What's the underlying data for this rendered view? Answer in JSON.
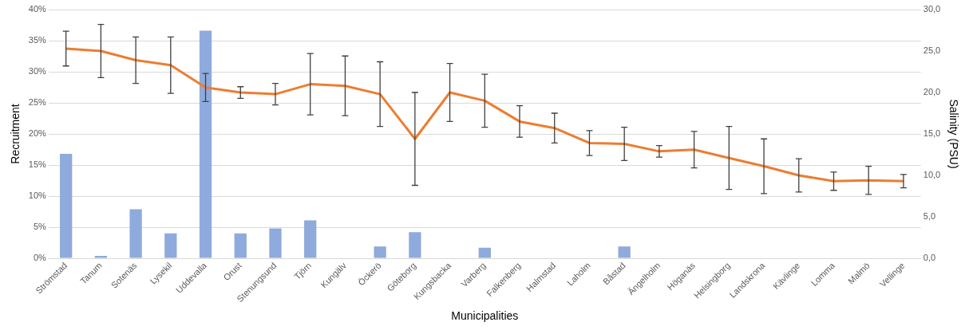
{
  "chart_data": {
    "type": "bar",
    "xlabel": "Municipalities",
    "ylabel": "Recruitment",
    "y2label": "Salinity (PSU)",
    "categories": [
      "Strömstad",
      "Tanum",
      "Sotenäs",
      "Lysekil",
      "Uddevalla",
      "Orust",
      "Stenungsund",
      "Tjörn",
      "Kungälv",
      "Öckerö",
      "Göteborg",
      "Kungsbacka",
      "Varberg",
      "Falkenberg",
      "Halmstad",
      "Laholm",
      "Båstad",
      "Ängelholm",
      "Höganäs",
      "Helsingborg",
      "Landskrona",
      "Kävlinge",
      "Lomma",
      "Malmö",
      "Vellinge"
    ],
    "series": [
      {
        "color": "#8faadc",
        "values": [
          16.8,
          0.4,
          7.9,
          4.0,
          36.6,
          4.0,
          4.8,
          6.1,
          0,
          1.9,
          4.2,
          0,
          1.7,
          0,
          0,
          0,
          1.9,
          0,
          0,
          0,
          0,
          0,
          0,
          0,
          0
        ]
      },
      {
        "type": "line",
        "axis": "y2",
        "color": "#ed7d31",
        "values": [
          25.3,
          25.0,
          23.9,
          23.3,
          20.6,
          20.0,
          19.8,
          21.0,
          20.8,
          19.8,
          14.4,
          20.0,
          19.0,
          16.5,
          15.7,
          13.9,
          13.8,
          12.9,
          13.1,
          12.1,
          11.1,
          10.0,
          9.3,
          9.4,
          9.3
        ],
        "errors": [
          2.1,
          3.2,
          2.8,
          3.4,
          1.7,
          0.7,
          1.3,
          3.7,
          3.6,
          3.9,
          5.6,
          3.5,
          3.2,
          1.9,
          1.8,
          1.5,
          2.0,
          0.7,
          2.2,
          3.8,
          3.3,
          2.0,
          1.1,
          1.7,
          0.8
        ]
      }
    ],
    "ylim": [
      0,
      40
    ],
    "yticks": [
      {
        "value": 0,
        "label": "0%"
      },
      {
        "value": 5,
        "label": "5%"
      },
      {
        "value": 10,
        "label": "10%"
      },
      {
        "value": 15,
        "label": "15%"
      },
      {
        "value": 20,
        "label": "20%"
      },
      {
        "value": 25,
        "label": "25%"
      },
      {
        "value": 30,
        "label": "30%"
      },
      {
        "value": 35,
        "label": "35%"
      },
      {
        "value": 40,
        "label": "40%"
      }
    ],
    "y2lim": [
      0,
      30
    ],
    "y2ticks": [
      {
        "value": 0,
        "label": "0,0"
      },
      {
        "value": 5,
        "label": "5,0"
      },
      {
        "value": 10,
        "label": "10,0"
      },
      {
        "value": 15,
        "label": "15,0"
      },
      {
        "value": 20,
        "label": "20,0"
      },
      {
        "value": 25,
        "label": "25,0"
      },
      {
        "value": 30,
        "label": "30,0"
      }
    ],
    "grid": "y",
    "legend": false,
    "marker": "none",
    "line_style": "solid"
  }
}
